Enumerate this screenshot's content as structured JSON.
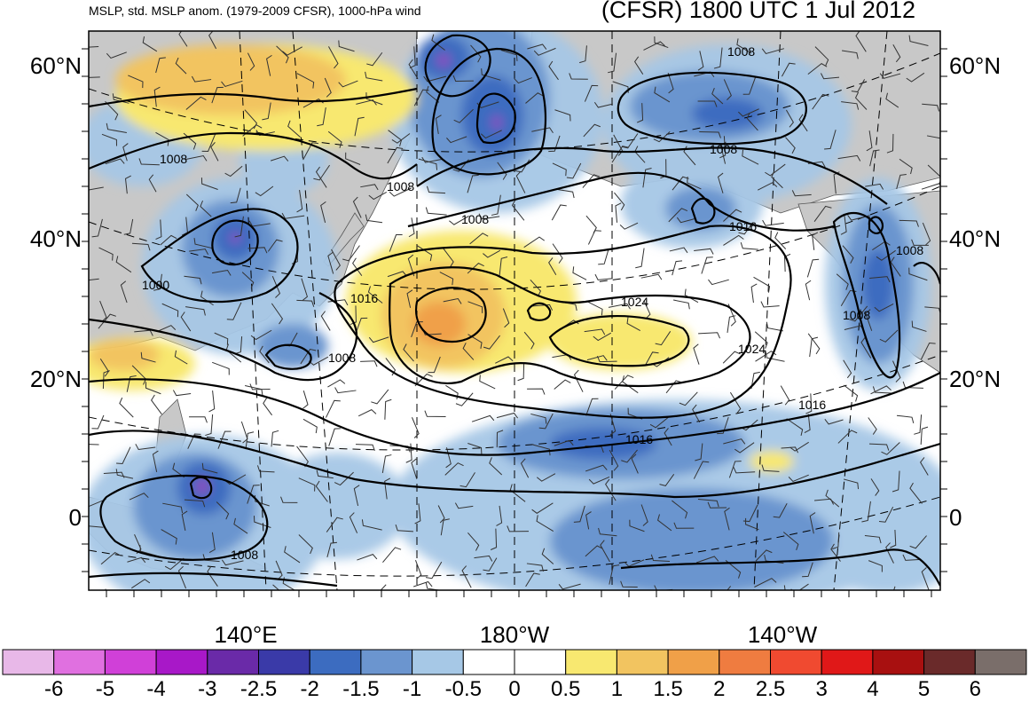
{
  "title_left": "MSLP, std. MSLP anom. (1979-2009 CFSR), 1000-hPa wind",
  "title_right": "(CFSR) 1800 UTC 1 Jul 2012",
  "lat_labels": [
    "60°N",
    "40°N",
    "20°N",
    "0"
  ],
  "lon_labels": [
    "140°E",
    "180°W",
    "140°W"
  ],
  "colorbar_ticks": [
    "-6",
    "-5",
    "-4",
    "-3",
    "-2.5",
    "-2",
    "-1.5",
    "-1",
    "-0.5",
    "0",
    "0.5",
    "1",
    "1.5",
    "2",
    "2.5",
    "3",
    "4",
    "5",
    "6"
  ],
  "colorbar_colors": [
    "#e8b8e8",
    "#e070e0",
    "#d040d8",
    "#a818c8",
    "#6a2aa8",
    "#3a3aa8",
    "#3c6cc0",
    "#6b95cf",
    "#a6c8e6",
    "#ffffff",
    "#ffffff",
    "#f8e870",
    "#f2c460",
    "#f0a048",
    "#ef7c40",
    "#f04a30",
    "#e01818",
    "#a81010",
    "#6a2a2a",
    "#7a6e6a"
  ],
  "isobar_labels": [
    "1008",
    "1008",
    "1008",
    "1008",
    "1008",
    "1016",
    "1016",
    "1024",
    "1024",
    "1016",
    "1016",
    "1000",
    "1008",
    "1008",
    "1008",
    "1008"
  ],
  "map_colors": {
    "land": "#c8c8c8",
    "ocean": "#ffffff",
    "contour": "#000000",
    "coast": "#555555"
  }
}
